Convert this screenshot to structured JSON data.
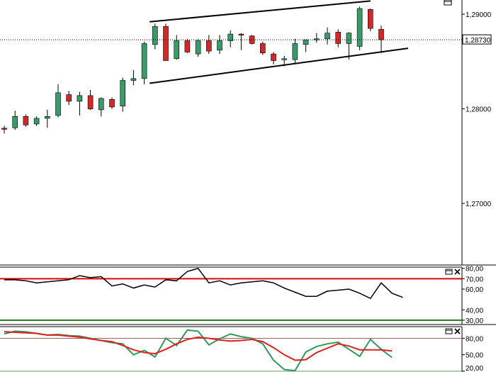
{
  "colors": {
    "background": "#ffffff",
    "bull_candle": "#3a9a6a",
    "bear_candle": "#d42828",
    "wick": "#000000",
    "trend_line": "#000000",
    "rsi_line": "#000000",
    "level_upper": "#e00000",
    "level_lower": "#1f7a1f",
    "stoch_k": "#2f9a5a",
    "stoch_d": "#e02020",
    "stoch_upper": "#a06060",
    "stoch_lower": "#60a060",
    "axis": "#000000",
    "dotted_line": "#000000"
  },
  "icons": [
    "maximize-icon",
    "close-icon"
  ],
  "chart_data": [
    {
      "type": "candlestick",
      "title": "",
      "ylim": [
        1.2635,
        1.2915
      ],
      "y_ticks": [
        "1,29000",
        "1,28000",
        "1,27000"
      ],
      "y_tick_values": [
        1.29,
        1.28,
        1.27
      ],
      "current_price": "1,28730",
      "current_price_value": 1.2873,
      "candles": [
        {
          "o": 1.27795,
          "h": 1.2782,
          "l": 1.2774,
          "c": 1.27785
        },
        {
          "o": 1.278,
          "h": 1.2798,
          "l": 1.2778,
          "c": 1.2792
        },
        {
          "o": 1.2792,
          "h": 1.2794,
          "l": 1.2781,
          "c": 1.2783
        },
        {
          "o": 1.2784,
          "h": 1.2792,
          "l": 1.2782,
          "c": 1.279
        },
        {
          "o": 1.279,
          "h": 1.2799,
          "l": 1.278,
          "c": 1.2792
        },
        {
          "o": 1.2793,
          "h": 1.2826,
          "l": 1.2791,
          "c": 1.2817
        },
        {
          "o": 1.2815,
          "h": 1.2819,
          "l": 1.2804,
          "c": 1.2808
        },
        {
          "o": 1.2808,
          "h": 1.2818,
          "l": 1.2793,
          "c": 1.2814
        },
        {
          "o": 1.2814,
          "h": 1.282,
          "l": 1.2799,
          "c": 1.28
        },
        {
          "o": 1.2799,
          "h": 1.2812,
          "l": 1.2792,
          "c": 1.2811
        },
        {
          "o": 1.281,
          "h": 1.2812,
          "l": 1.28,
          "c": 1.2802
        },
        {
          "o": 1.2803,
          "h": 1.2833,
          "l": 1.2797,
          "c": 1.283
        },
        {
          "o": 1.283,
          "h": 1.2841,
          "l": 1.2825,
          "c": 1.2832
        },
        {
          "o": 1.2832,
          "h": 1.2871,
          "l": 1.2826,
          "c": 1.2869
        },
        {
          "o": 1.2868,
          "h": 1.289,
          "l": 1.2863,
          "c": 1.2887
        },
        {
          "o": 1.2887,
          "h": 1.289,
          "l": 1.2851,
          "c": 1.2851
        },
        {
          "o": 1.2853,
          "h": 1.2878,
          "l": 1.2852,
          "c": 1.2872
        },
        {
          "o": 1.2872,
          "h": 1.2874,
          "l": 1.2859,
          "c": 1.286
        },
        {
          "o": 1.2858,
          "h": 1.2874,
          "l": 1.2855,
          "c": 1.2872
        },
        {
          "o": 1.2872,
          "h": 1.2878,
          "l": 1.2858,
          "c": 1.2861
        },
        {
          "o": 1.2862,
          "h": 1.2878,
          "l": 1.2858,
          "c": 1.2872
        },
        {
          "o": 1.2872,
          "h": 1.2883,
          "l": 1.2865,
          "c": 1.2879
        },
        {
          "o": 1.2879,
          "h": 1.288,
          "l": 1.2862,
          "c": 1.2878
        },
        {
          "o": 1.2877,
          "h": 1.2878,
          "l": 1.2868,
          "c": 1.2869
        },
        {
          "o": 1.2869,
          "h": 1.2871,
          "l": 1.2857,
          "c": 1.2859
        },
        {
          "o": 1.2858,
          "h": 1.286,
          "l": 1.2847,
          "c": 1.2851
        },
        {
          "o": 1.2852,
          "h": 1.2856,
          "l": 1.2845,
          "c": 1.2853
        },
        {
          "o": 1.2852,
          "h": 1.2874,
          "l": 1.2848,
          "c": 1.2869
        },
        {
          "o": 1.2868,
          "h": 1.2873,
          "l": 1.286,
          "c": 1.2873
        },
        {
          "o": 1.2873,
          "h": 1.288,
          "l": 1.287,
          "c": 1.2874
        },
        {
          "o": 1.2874,
          "h": 1.2886,
          "l": 1.2868,
          "c": 1.288
        },
        {
          "o": 1.2881,
          "h": 1.2884,
          "l": 1.2865,
          "c": 1.2869
        },
        {
          "o": 1.2869,
          "h": 1.2881,
          "l": 1.2852,
          "c": 1.288
        },
        {
          "o": 1.2866,
          "h": 1.2908,
          "l": 1.2862,
          "c": 1.2906
        },
        {
          "o": 1.2905,
          "h": 1.2906,
          "l": 1.2882,
          "c": 1.2885
        },
        {
          "o": 1.2884,
          "h": 1.2888,
          "l": 1.2859,
          "c": 1.2873
        }
      ],
      "trend_lines": [
        {
          "from_index": 13.5,
          "from_price": 1.2892,
          "to_index": 34,
          "to_price": 1.2914
        },
        {
          "from_index": 13.5,
          "from_price": 1.2827,
          "to_index": 37.5,
          "to_price": 1.2864
        }
      ]
    },
    {
      "type": "line",
      "title": "",
      "ylim": [
        26.5,
        80.5
      ],
      "y_ticks": [
        "80,00",
        "70,00",
        "60,00",
        "40,00",
        "30,00"
      ],
      "y_tick_values": [
        80,
        70,
        60,
        40,
        30
      ],
      "levels": [
        70,
        30
      ],
      "series": [
        {
          "values": [
            69,
            69,
            68,
            66,
            67,
            68,
            69,
            73,
            71,
            72,
            63,
            65,
            61,
            64,
            62,
            69,
            68,
            77,
            80,
            66,
            68,
            64,
            66,
            67,
            68,
            66,
            61,
            57,
            53,
            53,
            58,
            59,
            60,
            56,
            51,
            66,
            56,
            52
          ]
        }
      ]
    },
    {
      "type": "line",
      "title": "",
      "ylim": [
        18.5,
        100
      ],
      "y_ticks": [
        "80,00",
        "50,00",
        "20,00"
      ],
      "y_tick_values": [
        80,
        50,
        20
      ],
      "levels": [
        80,
        20
      ],
      "series": [
        {
          "values": [
            88,
            93,
            92,
            89,
            86,
            87,
            85,
            84,
            80,
            76,
            72,
            70,
            50,
            58,
            46,
            80,
            67,
            95,
            93,
            68,
            79,
            88,
            83,
            80,
            70,
            40,
            23,
            21,
            55,
            65,
            70,
            73,
            60,
            47,
            78,
            60,
            45
          ]
        },
        {
          "values": [
            92,
            91,
            90,
            89,
            86,
            86,
            84,
            82,
            79,
            76,
            74,
            67,
            59,
            54,
            52,
            60,
            70,
            78,
            82,
            80,
            77,
            75,
            76,
            78,
            74,
            63,
            50,
            40,
            41,
            54,
            62,
            70,
            66,
            59,
            59,
            59,
            57
          ]
        }
      ]
    }
  ]
}
